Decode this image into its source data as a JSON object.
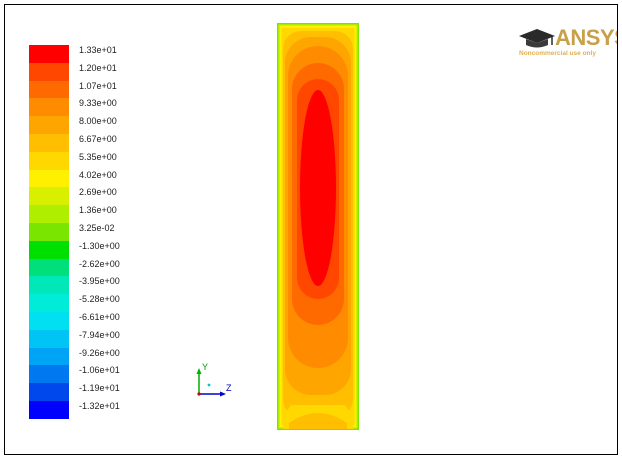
{
  "legend": {
    "levels": [
      {
        "label": "1.33e+01",
        "color": "#ff0000"
      },
      {
        "label": "1.20e+01",
        "color": "#ff4700"
      },
      {
        "label": "1.07e+01",
        "color": "#ff6a00"
      },
      {
        "label": "9.33e+00",
        "color": "#ff8c00"
      },
      {
        "label": "8.00e+00",
        "color": "#ffa500"
      },
      {
        "label": "6.67e+00",
        "color": "#ffbf00"
      },
      {
        "label": "5.35e+00",
        "color": "#ffd800"
      },
      {
        "label": "4.02e+00",
        "color": "#fff000"
      },
      {
        "label": "2.69e+00",
        "color": "#d8f000"
      },
      {
        "label": "1.36e+00",
        "color": "#b0ee00"
      },
      {
        "label": "3.25e-02",
        "color": "#7ae600"
      },
      {
        "label": "-1.30e+00",
        "color": "#00e000"
      },
      {
        "label": "-2.62e+00",
        "color": "#00e07a"
      },
      {
        "label": "-3.95e+00",
        "color": "#00e8b8"
      },
      {
        "label": "-5.28e+00",
        "color": "#00ecd8"
      },
      {
        "label": "-6.61e+00",
        "color": "#00e0f0"
      },
      {
        "label": "-7.94e+00",
        "color": "#00c4f4"
      },
      {
        "label": "-9.26e+00",
        "color": "#00a4f4"
      },
      {
        "label": "-1.06e+01",
        "color": "#0078f0"
      },
      {
        "label": "-1.19e+01",
        "color": "#0048ec"
      },
      {
        "label": "-1.32e+01",
        "color": "#0000ff"
      }
    ]
  },
  "triad": {
    "y_label": "Y",
    "z_label": "Z"
  },
  "logo": {
    "word": "ANSYS",
    "subtitle": "Noncommercial use only"
  },
  "colors": {
    "plot_border": "#7ae600",
    "logo_gold": "#c8a04a"
  }
}
